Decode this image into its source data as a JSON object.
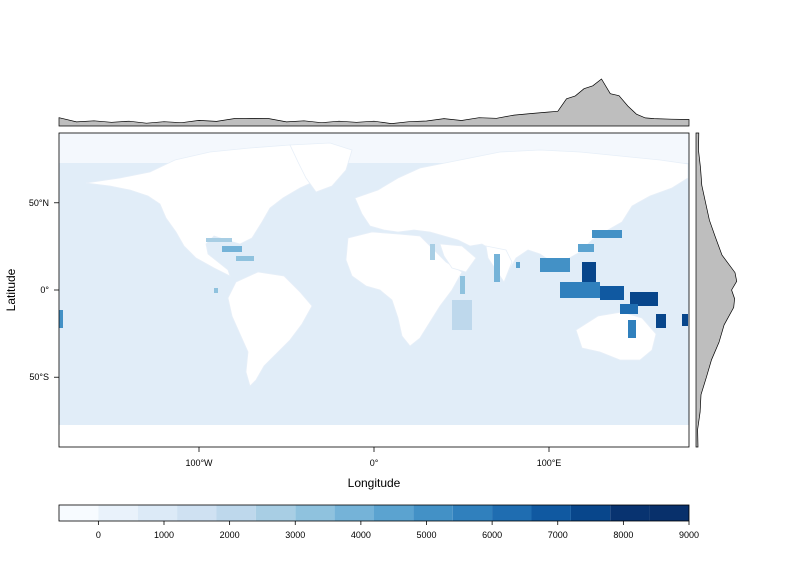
{
  "chart_data": {
    "type": "heatmap",
    "title": "",
    "xlabel": "Longitude",
    "ylabel": "Latitude",
    "x_ticks": [
      {
        "value": -100,
        "label": "100°W"
      },
      {
        "value": 0,
        "label": "0°"
      },
      {
        "value": 100,
        "label": "100°E"
      }
    ],
    "y_ticks": [
      {
        "value": 50,
        "label": "50°N"
      },
      {
        "value": 0,
        "label": "0°"
      },
      {
        "value": -50,
        "label": "50°S"
      }
    ],
    "xlim": [
      -180,
      180
    ],
    "ylim": [
      -90,
      90
    ],
    "colorbar": {
      "ticks": [
        0,
        1000,
        2000,
        3000,
        4000,
        5000,
        6000,
        7000,
        8000,
        9000
      ],
      "tick_labels": [
        "0",
        "1000",
        "2000",
        "3000",
        "4000",
        "5000",
        "6000",
        "7000",
        "8000",
        "9000"
      ],
      "levels": [
        -600,
        0,
        600,
        1200,
        1800,
        2400,
        3000,
        3600,
        4200,
        4800,
        5400,
        6000,
        6600,
        7200,
        7800,
        8400,
        9000
      ],
      "colors": [
        "#f7fbff",
        "#e9f2fb",
        "#dceaf7",
        "#cfe1f2",
        "#bed8ec",
        "#a8cee4",
        "#8fc2de",
        "#75b3d8",
        "#5ba3d0",
        "#4391c6",
        "#3080bd",
        "#1f6db1",
        "#1059a1",
        "#08468b",
        "#083370",
        "#08306b"
      ]
    },
    "land_color": "#ffffff",
    "ocean_base_color": "#e1edf8",
    "marginal_top": {
      "description_free": true,
      "x": [
        -180,
        -170,
        -160,
        -150,
        -140,
        -130,
        -120,
        -110,
        -100,
        -90,
        -80,
        -70,
        -60,
        -50,
        -40,
        -30,
        -20,
        -10,
        0,
        10,
        20,
        30,
        40,
        50,
        60,
        70,
        80,
        90,
        100,
        105,
        110,
        115,
        120,
        125,
        130,
        135,
        140,
        145,
        150,
        155,
        160,
        170,
        180
      ],
      "y": [
        0.12,
        0.06,
        0.05,
        0.05,
        0.04,
        0.03,
        0.03,
        0.04,
        0.06,
        0.07,
        0.1,
        0.14,
        0.1,
        0.06,
        0.05,
        0.04,
        0.04,
        0.05,
        0.04,
        0.02,
        0.03,
        0.08,
        0.1,
        0.09,
        0.12,
        0.14,
        0.18,
        0.25,
        0.25,
        0.3,
        0.55,
        0.65,
        0.78,
        0.88,
        1.0,
        0.7,
        0.62,
        0.42,
        0.2,
        0.15,
        0.1,
        0.12,
        0.08
      ],
      "fill": "#bebebe"
    },
    "marginal_right": {
      "lat": [
        90,
        80,
        70,
        60,
        50,
        40,
        30,
        20,
        10,
        5,
        0,
        -5,
        -10,
        -20,
        -30,
        -40,
        -50,
        -60,
        -70,
        -80,
        -90
      ],
      "value": [
        0.02,
        0.04,
        0.06,
        0.12,
        0.18,
        0.3,
        0.42,
        0.6,
        0.88,
        0.95,
        0.8,
        0.9,
        0.85,
        0.65,
        0.5,
        0.35,
        0.2,
        0.1,
        0.05,
        0.02,
        0.0
      ],
      "fill": "#bebebe"
    }
  }
}
